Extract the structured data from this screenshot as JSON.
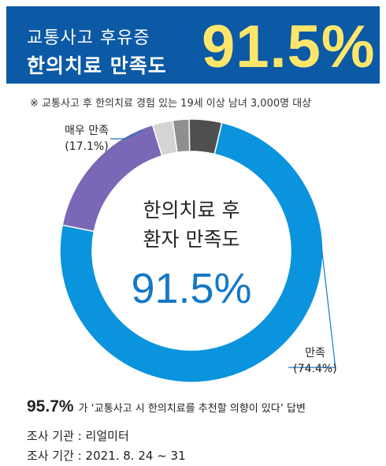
{
  "header": {
    "line1": "교통사고 후유증",
    "line2": "한의치료 만족도",
    "big_value": "91.5%"
  },
  "note": "※ 교통사고 후 한의치료 경험 있는 19세 이상 남녀 3,000명 대상",
  "chart_data": {
    "type": "pie",
    "donut": true,
    "title": "",
    "center_text": [
      "한의치료 후",
      "환자 만족도"
    ],
    "center_value": "91.5%",
    "slices": [
      {
        "label": "만족",
        "value": 74.4,
        "value_label": "(74.4%)",
        "color": "#0b94de",
        "labeled": true
      },
      {
        "label": "매우 만족",
        "value": 17.1,
        "value_label": "(17.1%)",
        "color": "#7a67b6",
        "labeled": true
      },
      {
        "label": "",
        "value": 2.5,
        "value_label": "",
        "color": "#d4d4d4",
        "labeled": false
      },
      {
        "label": "",
        "value": 2.0,
        "value_label": "",
        "color": "#8f8f8f",
        "labeled": false
      },
      {
        "label": "",
        "value": 4.0,
        "value_label": "",
        "color": "#4f4f4f",
        "labeled": false
      }
    ]
  },
  "footer": {
    "pct": "95.7%",
    "statement": "가 ‘교통사고 시 한의치료를 추천할 의향이 있다’ 답변",
    "agency": "조사 기관 : 리얼미터",
    "period": "조사 기간 : 2021. 8. 24 ~ 31"
  }
}
